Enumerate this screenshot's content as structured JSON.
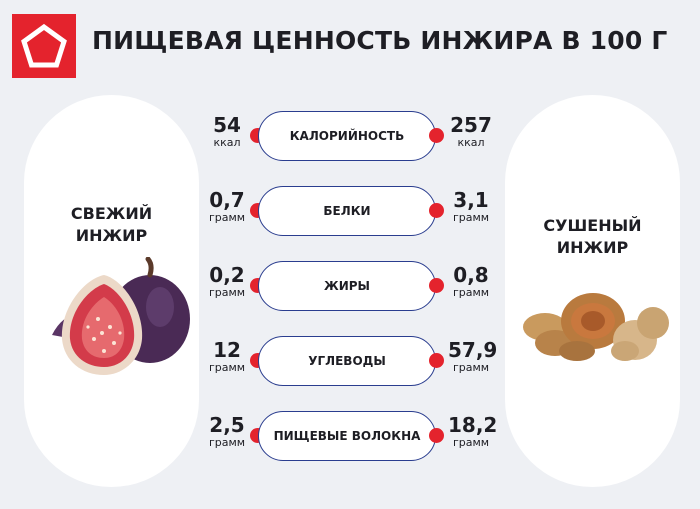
{
  "header": {
    "title": "ПИЩЕВАЯ ЦЕННОСТЬ ИНЖИРА В 100 Г",
    "logo_color": "#e4232d"
  },
  "fresh": {
    "title_line1": "СВЕЖИЙ",
    "title_line2": "ИНЖИР",
    "image": "fresh-fig-illustration"
  },
  "dried": {
    "title_line1": "СУШЕНЫЙ",
    "title_line2": "ИНЖИР",
    "image": "dried-fig-illustration"
  },
  "nutrients": [
    {
      "label": "КАЛОРИЙНОСТЬ",
      "fresh_value": "54",
      "fresh_unit": "ккал",
      "dried_value": "257",
      "dried_unit": "ккал"
    },
    {
      "label": "БЕЛКИ",
      "fresh_value": "0,7",
      "fresh_unit": "грамм",
      "dried_value": "3,1",
      "dried_unit": "грамм"
    },
    {
      "label": "ЖИРЫ",
      "fresh_value": "0,2",
      "fresh_unit": "грамм",
      "dried_value": "0,8",
      "dried_unit": "грамм"
    },
    {
      "label": "УГЛЕВОДЫ",
      "fresh_value": "12",
      "fresh_unit": "грамм",
      "dried_value": "57,9",
      "dried_unit": "грамм"
    },
    {
      "label": "ПИЩЕВЫЕ ВОЛОКНА",
      "fresh_value": "2,5",
      "fresh_unit": "грамм",
      "dried_value": "18,2",
      "dried_unit": "грамм"
    }
  ],
  "colors": {
    "accent": "#e4232d",
    "outline": "#2a3d8f",
    "background": "#eef0f4"
  }
}
